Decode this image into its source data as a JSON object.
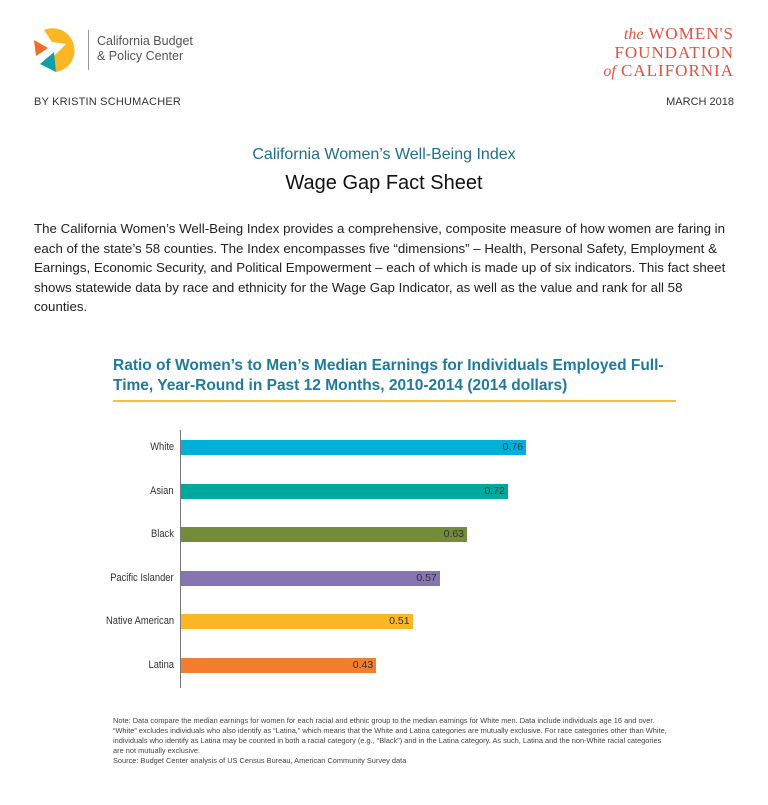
{
  "header": {
    "cbpc_logo": {
      "line1": "California Budget",
      "line2": "& Policy Center"
    },
    "wf_logo": {
      "line1_italic": "the",
      "line1": "WOMEN'S",
      "line2": "FOUNDATION",
      "line3_italic": "of",
      "line3": "CALIFORNIA"
    },
    "author": "BY KRISTIN SCHUMACHER",
    "date": "MARCH 2018"
  },
  "subtitle": "California Women’s Well-Being Index",
  "title": "Wage Gap Fact Sheet",
  "intro": "The California Women’s Well-Being Index provides a comprehensive, composite measure of how women are faring in each of the state’s 58 counties. The Index encompasses five “dimensions” – Health, Personal Safety, Employment & Earnings, Economic Security, and Political Empowerment – each of which is made up of six indicators. This fact sheet shows statewide data by race and ethnicity for the Wage Gap Indicator, as well as the value and rank for all 58 counties.",
  "chart_data": {
    "type": "bar",
    "orientation": "horizontal",
    "title": "Ratio of Women’s to Men’s Median Earnings for Individuals Employed Full-Time, Year-Round in Past 12 Months, 2010-2014 (2014 dollars)",
    "categories": [
      "White",
      "Asian",
      "Black",
      "Pacific Islander",
      "Native American",
      "Latina"
    ],
    "values": [
      0.76,
      0.72,
      0.63,
      0.57,
      0.51,
      0.43
    ],
    "labels": [
      "0.76",
      "0.72",
      "0.63",
      "0.57",
      "0.51",
      "0.43"
    ],
    "colors": [
      "#00b0d8",
      "#00a99d",
      "#748b3a",
      "#8575b2",
      "#fbb625",
      "#f27e30"
    ],
    "xlim": [
      0,
      1
    ],
    "grid": false,
    "xlabel": "",
    "ylabel": ""
  },
  "note": {
    "text": "Note: Data compare the median earnings for women for each racial and ethnic group to the median earnings for White men. Data include individuals age 16 and over. “White” excludes individuals who also identify as “Latina,” which means that the White and Latina categories are mutually exclusive. For race categories other than White, individuals who identify as Latina may be counted in both a racial category (e.g., “Black”) and in the Latina category. As such, Latina and the non-White racial categories are not mutually exclusive.",
    "source": "Source: Budget Center analysis of US Census Bureau, American Community Survey data"
  }
}
